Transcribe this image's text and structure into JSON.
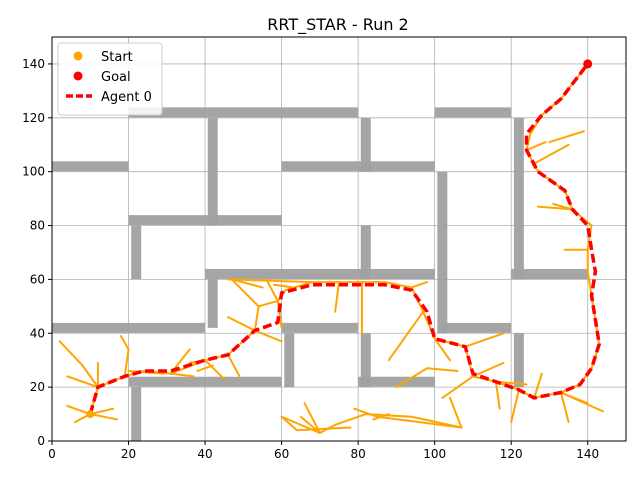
{
  "chart_data": {
    "type": "line",
    "title": "RRT_STAR - Run 2",
    "xlabel": "",
    "ylabel": "",
    "xlim": [
      0,
      150
    ],
    "ylim": [
      0,
      150
    ],
    "xticks": [
      0,
      20,
      40,
      60,
      80,
      100,
      120,
      140
    ],
    "yticks": [
      0,
      20,
      40,
      60,
      80,
      100,
      120,
      140
    ],
    "grid": true,
    "legend_position": "top-left",
    "legend": [
      {
        "label": "Start",
        "kind": "marker",
        "color": "#ffa500"
      },
      {
        "label": "Goal",
        "kind": "marker",
        "color": "#ff0000"
      },
      {
        "label": "Agent 0",
        "kind": "dashed-line",
        "color": "#ff0000"
      }
    ],
    "colors": {
      "walls": "#a0a0a0",
      "tree": "#ffa500",
      "path": "#ff0000",
      "goal": "#ff0000",
      "grid": "#b0b0b0"
    },
    "start": [
      10,
      10
    ],
    "goal": [
      140,
      140
    ],
    "walls": [
      [
        [
          0,
          102
        ],
        [
          20,
          102
        ]
      ],
      [
        [
          20,
          122
        ],
        [
          80,
          122
        ]
      ],
      [
        [
          42,
          120
        ],
        [
          42,
          80
        ]
      ],
      [
        [
          20,
          82
        ],
        [
          60,
          82
        ]
      ],
      [
        [
          22,
          80
        ],
        [
          22,
          60
        ]
      ],
      [
        [
          82,
          120
        ],
        [
          82,
          100
        ]
      ],
      [
        [
          60,
          102
        ],
        [
          100,
          102
        ]
      ],
      [
        [
          100,
          122
        ],
        [
          120,
          122
        ]
      ],
      [
        [
          102,
          100
        ],
        [
          102,
          40
        ]
      ],
      [
        [
          122,
          120
        ],
        [
          122,
          60
        ]
      ],
      [
        [
          120,
          62
        ],
        [
          140,
          62
        ]
      ],
      [
        [
          82,
          80
        ],
        [
          82,
          60
        ]
      ],
      [
        [
          40,
          62
        ],
        [
          100,
          62
        ]
      ],
      [
        [
          42,
          60
        ],
        [
          42,
          42
        ]
      ],
      [
        [
          0,
          42
        ],
        [
          40,
          42
        ]
      ],
      [
        [
          60,
          42
        ],
        [
          80,
          42
        ]
      ],
      [
        [
          62,
          40
        ],
        [
          62,
          20
        ]
      ],
      [
        [
          82,
          40
        ],
        [
          82,
          20
        ]
      ],
      [
        [
          80,
          22
        ],
        [
          100,
          22
        ]
      ],
      [
        [
          102,
          42
        ],
        [
          120,
          42
        ]
      ],
      [
        [
          122,
          40
        ],
        [
          122,
          20
        ]
      ],
      [
        [
          20,
          22
        ],
        [
          60,
          22
        ]
      ],
      [
        [
          22,
          20
        ],
        [
          22,
          0
        ]
      ]
    ],
    "tree_edges": [
      [
        [
          10,
          10
        ],
        [
          6,
          7
        ]
      ],
      [
        [
          10,
          10
        ],
        [
          17,
          8
        ]
      ],
      [
        [
          10,
          10
        ],
        [
          16,
          12
        ]
      ],
      [
        [
          10,
          10
        ],
        [
          4,
          13
        ]
      ],
      [
        [
          10,
          10
        ],
        [
          12,
          20
        ]
      ],
      [
        [
          12,
          20
        ],
        [
          4,
          24
        ]
      ],
      [
        [
          12,
          20
        ],
        [
          12,
          29
        ]
      ],
      [
        [
          12,
          20
        ],
        [
          19,
          24
        ]
      ],
      [
        [
          12,
          20
        ],
        [
          8,
          28
        ]
      ],
      [
        [
          8,
          28
        ],
        [
          2,
          37
        ]
      ],
      [
        [
          19,
          24
        ],
        [
          20,
          34
        ]
      ],
      [
        [
          20,
          34
        ],
        [
          18,
          39
        ]
      ],
      [
        [
          19,
          24
        ],
        [
          24,
          26
        ]
      ],
      [
        [
          24,
          26
        ],
        [
          31,
          25
        ]
      ],
      [
        [
          31,
          25
        ],
        [
          36,
          34
        ]
      ],
      [
        [
          31,
          25
        ],
        [
          37,
          24
        ]
      ],
      [
        [
          31,
          25
        ],
        [
          40,
          30
        ]
      ],
      [
        [
          40,
          30
        ],
        [
          46,
          32
        ]
      ],
      [
        [
          40,
          30
        ],
        [
          45,
          23
        ]
      ],
      [
        [
          40,
          30
        ],
        [
          36,
          29
        ]
      ],
      [
        [
          46,
          32
        ],
        [
          53,
          41
        ]
      ],
      [
        [
          46,
          32
        ],
        [
          49,
          24
        ]
      ],
      [
        [
          53,
          41
        ],
        [
          60,
          37
        ]
      ],
      [
        [
          53,
          41
        ],
        [
          46,
          46
        ]
      ],
      [
        [
          53,
          41
        ],
        [
          54,
          50
        ]
      ],
      [
        [
          54,
          50
        ],
        [
          47,
          60
        ]
      ],
      [
        [
          54,
          50
        ],
        [
          59,
          52
        ]
      ],
      [
        [
          59,
          52
        ],
        [
          61,
          56
        ]
      ],
      [
        [
          59,
          52
        ],
        [
          56,
          60
        ]
      ],
      [
        [
          59,
          52
        ],
        [
          60,
          42
        ]
      ],
      [
        [
          61,
          56
        ],
        [
          68,
          59
        ]
      ],
      [
        [
          68,
          59
        ],
        [
          75,
          59
        ]
      ],
      [
        [
          75,
          59
        ],
        [
          81,
          59
        ]
      ],
      [
        [
          75,
          59
        ],
        [
          74,
          48
        ]
      ],
      [
        [
          81,
          59
        ],
        [
          87,
          59
        ]
      ],
      [
        [
          81,
          59
        ],
        [
          81,
          40
        ]
      ],
      [
        [
          87,
          59
        ],
        [
          94,
          57
        ]
      ],
      [
        [
          94,
          57
        ],
        [
          98,
          59
        ]
      ],
      [
        [
          94,
          57
        ],
        [
          97,
          48
        ]
      ],
      [
        [
          97,
          48
        ],
        [
          100,
          38
        ]
      ],
      [
        [
          97,
          48
        ],
        [
          88,
          30
        ]
      ],
      [
        [
          100,
          38
        ],
        [
          108,
          35
        ]
      ],
      [
        [
          100,
          38
        ],
        [
          104,
          30
        ]
      ],
      [
        [
          108,
          35
        ],
        [
          118,
          40
        ]
      ],
      [
        [
          108,
          35
        ],
        [
          110,
          24
        ]
      ],
      [
        [
          110,
          24
        ],
        [
          116,
          22
        ]
      ],
      [
        [
          110,
          24
        ],
        [
          102,
          16
        ]
      ],
      [
        [
          110,
          24
        ],
        [
          118,
          29
        ]
      ],
      [
        [
          116,
          22
        ],
        [
          122,
          19
        ]
      ],
      [
        [
          116,
          22
        ],
        [
          124,
          21
        ]
      ],
      [
        [
          116,
          22
        ],
        [
          117,
          12
        ]
      ],
      [
        [
          122,
          19
        ],
        [
          126,
          16
        ]
      ],
      [
        [
          122,
          19
        ],
        [
          120,
          7
        ]
      ],
      [
        [
          126,
          16
        ],
        [
          133,
          18
        ]
      ],
      [
        [
          126,
          16
        ],
        [
          128,
          25
        ]
      ],
      [
        [
          133,
          18
        ],
        [
          138,
          21
        ]
      ],
      [
        [
          133,
          18
        ],
        [
          140,
          14
        ]
      ],
      [
        [
          133,
          18
        ],
        [
          135,
          7
        ]
      ],
      [
        [
          133,
          18
        ],
        [
          144,
          11
        ]
      ],
      [
        [
          138,
          21
        ],
        [
          141,
          27
        ]
      ],
      [
        [
          141,
          27
        ],
        [
          143,
          36
        ]
      ],
      [
        [
          143,
          36
        ],
        [
          142,
          45
        ]
      ],
      [
        [
          142,
          45
        ],
        [
          141,
          54
        ]
      ],
      [
        [
          141,
          54
        ],
        [
          140,
          63
        ]
      ],
      [
        [
          140,
          63
        ],
        [
          140,
          71
        ]
      ],
      [
        [
          140,
          71
        ],
        [
          134,
          71
        ]
      ],
      [
        [
          140,
          71
        ],
        [
          141,
          80
        ]
      ],
      [
        [
          141,
          80
        ],
        [
          136,
          86
        ]
      ],
      [
        [
          136,
          86
        ],
        [
          131,
          88
        ]
      ],
      [
        [
          136,
          86
        ],
        [
          127,
          87
        ]
      ],
      [
        [
          136,
          86
        ],
        [
          134,
          93
        ]
      ],
      [
        [
          134,
          93
        ],
        [
          127,
          100
        ]
      ],
      [
        [
          127,
          100
        ],
        [
          124,
          108
        ]
      ],
      [
        [
          124,
          108
        ],
        [
          129,
          111
        ]
      ],
      [
        [
          124,
          108
        ],
        [
          125,
          114
        ]
      ],
      [
        [
          125,
          114
        ],
        [
          128,
          121
        ]
      ],
      [
        [
          128,
          121
        ],
        [
          133,
          127
        ]
      ],
      [
        [
          133,
          127
        ],
        [
          140,
          140
        ]
      ],
      [
        [
          130,
          111
        ],
        [
          139,
          115
        ]
      ],
      [
        [
          126,
          103
        ],
        [
          135,
          110
        ]
      ],
      [
        [
          104,
          16
        ],
        [
          107,
          5
        ]
      ],
      [
        [
          107,
          5
        ],
        [
          94,
          9
        ]
      ],
      [
        [
          107,
          5
        ],
        [
          85,
          9
        ]
      ],
      [
        [
          94,
          9
        ],
        [
          82,
          10
        ]
      ],
      [
        [
          85,
          9
        ],
        [
          79,
          12
        ]
      ],
      [
        [
          82,
          10
        ],
        [
          74,
          6
        ]
      ],
      [
        [
          74,
          6
        ],
        [
          70,
          3
        ]
      ],
      [
        [
          70,
          3
        ],
        [
          65,
          9
        ]
      ],
      [
        [
          70,
          3
        ],
        [
          60,
          9
        ]
      ],
      [
        [
          70,
          3
        ],
        [
          66,
          14
        ]
      ],
      [
        [
          60,
          9
        ],
        [
          64,
          4
        ]
      ],
      [
        [
          64,
          4
        ],
        [
          78,
          5
        ]
      ],
      [
        [
          84,
          8
        ],
        [
          88,
          10
        ]
      ],
      [
        [
          90,
          20
        ],
        [
          98,
          27
        ]
      ],
      [
        [
          98,
          27
        ],
        [
          106,
          26
        ]
      ],
      [
        [
          46,
          60
        ],
        [
          68,
          59
        ]
      ],
      [
        [
          55,
          57
        ],
        [
          47,
          60
        ]
      ],
      [
        [
          58,
          58
        ],
        [
          63,
          57
        ]
      ],
      [
        [
          38,
          26
        ],
        [
          42,
          28
        ]
      ],
      [
        [
          29,
          25
        ],
        [
          20,
          26
        ]
      ]
    ],
    "path": [
      [
        10,
        10
      ],
      [
        12,
        20
      ],
      [
        19,
        24
      ],
      [
        24,
        26
      ],
      [
        31,
        26
      ],
      [
        40,
        30
      ],
      [
        46,
        32
      ],
      [
        53,
        41
      ],
      [
        59,
        44
      ],
      [
        60,
        55
      ],
      [
        68,
        58
      ],
      [
        75,
        58
      ],
      [
        81,
        58
      ],
      [
        87,
        58
      ],
      [
        94,
        56
      ],
      [
        98,
        48
      ],
      [
        100,
        38
      ],
      [
        108,
        35
      ],
      [
        110,
        25
      ],
      [
        116,
        22
      ],
      [
        122,
        19
      ],
      [
        126,
        16
      ],
      [
        133,
        18
      ],
      [
        138,
        21
      ],
      [
        141,
        27
      ],
      [
        143,
        36
      ],
      [
        142,
        45
      ],
      [
        141,
        54
      ],
      [
        142,
        63
      ],
      [
        141,
        71
      ],
      [
        140,
        80
      ],
      [
        136,
        86
      ],
      [
        134,
        93
      ],
      [
        127,
        100
      ],
      [
        124,
        108
      ],
      [
        124,
        114
      ],
      [
        128,
        121
      ],
      [
        133,
        127
      ],
      [
        140,
        140
      ]
    ]
  }
}
